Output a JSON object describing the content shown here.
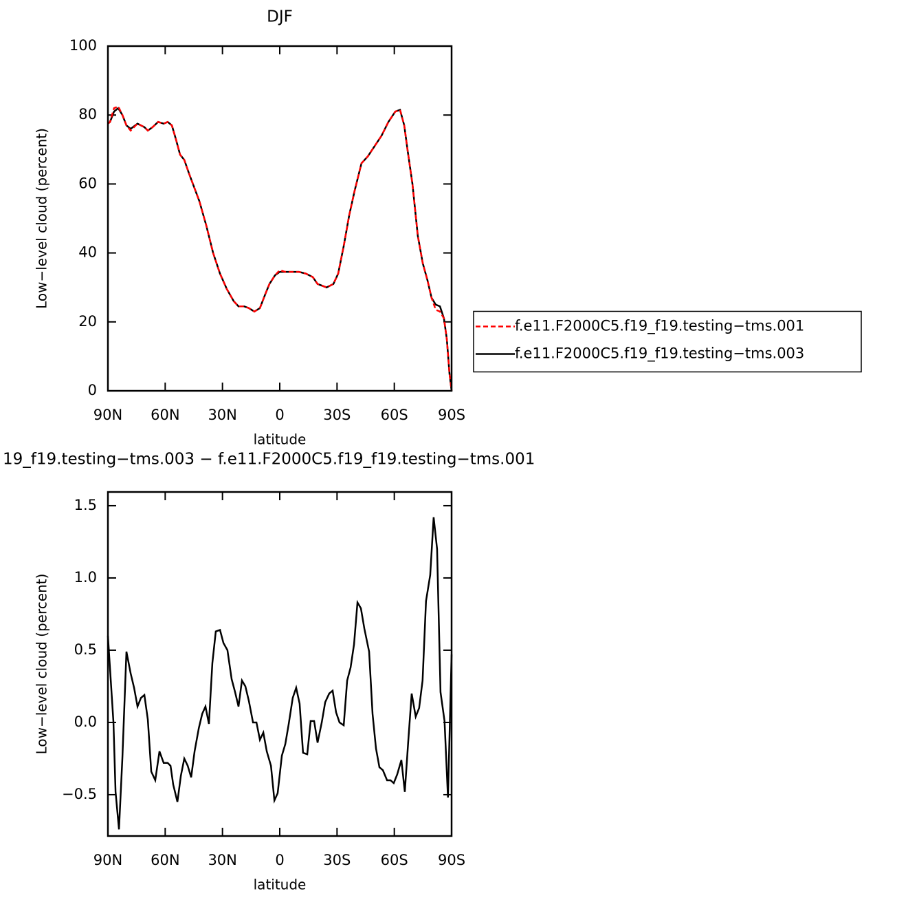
{
  "chart_data": [
    {
      "type": "line",
      "title": "DJF",
      "xlabel": "latitude",
      "ylabel": "Low−level cloud (percent)",
      "xlim": [
        90,
        -90
      ],
      "ylim": [
        0,
        100
      ],
      "xticks": [
        {
          "value": 90,
          "label": "90N"
        },
        {
          "value": 60,
          "label": "60N"
        },
        {
          "value": 30,
          "label": "30N"
        },
        0,
        {
          "value": -30,
          "label": "30S"
        },
        {
          "value": -60,
          "label": "60S"
        },
        {
          "value": -90,
          "label": "90S"
        }
      ],
      "yticks": [
        0,
        20,
        40,
        60,
        80,
        100
      ],
      "legend": "right",
      "x": [
        90,
        88.9,
        86.8,
        84.6,
        82.4,
        80.3,
        78.1,
        74.5,
        70.9,
        69.1,
        66.6,
        63.7,
        60.8,
        58.7,
        56.5,
        54.4,
        52.2,
        50,
        47.5,
        42.1,
        38.5,
        34.9,
        31.3,
        27.7,
        24.1,
        21.6,
        18.7,
        16.2,
        13.3,
        10.4,
        7.6,
        5.4,
        2.5,
        0,
        -2.9,
        -6.5,
        -10.1,
        -13.7,
        -17.3,
        -19.8,
        -24.5,
        -28.1,
        -30.6,
        -33.5,
        -36.4,
        -39.2,
        -42.8,
        -46.1,
        -49.7,
        -53.3,
        -56.9,
        -60.5,
        -63,
        -65.2,
        -66.9,
        -69.5,
        -72.3,
        -74.9,
        -77.4,
        -79.5,
        -81.7,
        -83.9,
        -86,
        -87.5,
        -88.9,
        -90
      ],
      "series": [
        {
          "name": "f.e11.F2000C5.f19_f19.testing−tms.001",
          "color": "#ff0000",
          "linestyle": "dashed",
          "values": [
            77.5,
            78,
            82,
            82.5,
            80,
            77,
            75.5,
            77.5,
            76.5,
            75.5,
            76.5,
            78,
            77.5,
            78,
            77,
            73,
            68.5,
            67,
            63,
            55,
            48,
            40,
            34,
            29.5,
            26,
            24.5,
            24.5,
            24,
            23,
            24,
            28,
            31,
            33.5,
            35,
            34.5,
            34.5,
            34.5,
            34,
            33,
            31,
            30,
            31,
            34,
            42,
            51,
            58,
            66,
            68,
            71,
            74,
            78,
            81,
            81.5,
            77,
            70,
            60,
            45,
            37,
            32,
            27,
            23.5,
            23,
            21,
            15,
            5,
            0
          ]
        },
        {
          "name": "f.e11.F2000C5.f19_f19.testing−tms.003",
          "color": "#000000",
          "linestyle": "solid",
          "values": [
            77.5,
            78,
            81,
            82,
            80,
            77,
            76,
            77.5,
            76.5,
            75.5,
            76.5,
            78,
            77.5,
            78,
            77,
            73,
            68.5,
            67,
            63,
            55,
            48,
            40,
            34,
            29.5,
            26,
            24.5,
            24.5,
            24,
            23,
            24,
            28,
            31,
            33.5,
            34.5,
            34.5,
            34.5,
            34.5,
            34,
            33,
            31,
            30,
            31,
            34,
            42,
            51,
            58,
            66,
            68,
            71,
            74,
            78,
            81,
            81.5,
            77,
            70,
            60,
            45,
            37,
            32,
            27,
            25,
            24.5,
            21,
            15,
            5,
            0
          ]
        }
      ]
    },
    {
      "type": "line",
      "title": "19_f19.testing−tms.003 − f.e11.F2000C5.f19_f19.testing−tms.001",
      "xlabel": "latitude",
      "ylabel": "Low−level cloud (percent)",
      "xlim": [
        90,
        -90
      ],
      "ylim": [
        -0.786,
        1.595
      ],
      "xticks": [
        {
          "value": 90,
          "label": "90N"
        },
        {
          "value": 60,
          "label": "60N"
        },
        {
          "value": 30,
          "label": "30N"
        },
        0,
        {
          "value": -30,
          "label": "30S"
        },
        {
          "value": -60,
          "label": "60S"
        },
        {
          "value": -90,
          "label": "90S"
        }
      ],
      "yticks": [
        {
          "value": -0.5,
          "label": "−0.5"
        },
        {
          "value": 0,
          "label": "0.0"
        },
        0.5,
        {
          "value": 1,
          "label": "1.0"
        },
        1.5
      ],
      "x": [
        90,
        87.1,
        86,
        84.2,
        82.4,
        80.3,
        78.1,
        76.3,
        74.5,
        72.7,
        70.9,
        69.1,
        67.3,
        65.2,
        63,
        60.8,
        58.7,
        57.2,
        55.8,
        53.6,
        51.8,
        50,
        48.2,
        46.4,
        44.6,
        42.4,
        40.6,
        38.9,
        37.1,
        35.3,
        33.5,
        31.3,
        29.5,
        27.4,
        25.2,
        23.4,
        21.6,
        19.8,
        18,
        16.2,
        14,
        12.2,
        10.4,
        8.6,
        6.8,
        4.6,
        2.8,
        1.1,
        -1.1,
        -2.9,
        -4.7,
        -6.8,
        -8.6,
        -10.4,
        -12.2,
        -14.4,
        -16.2,
        -18,
        -19.8,
        -22,
        -23.8,
        -25.9,
        -27.7,
        -29.5,
        -31.3,
        -33.5,
        -35.3,
        -37.1,
        -38.9,
        -40.7,
        -42.5,
        -44.3,
        -46.8,
        -48.6,
        -50.4,
        -52.2,
        -54,
        -56.2,
        -58,
        -59.7,
        -61.5,
        -63.7,
        -65.5,
        -67.3,
        -69.1,
        -71.2,
        -73,
        -74.8,
        -76.6,
        -78.8,
        -80.6,
        -82.4,
        -84.2,
        -86.3,
        -88.1,
        -90
      ],
      "series": [
        {
          "color": "#000000",
          "linestyle": "solid",
          "values": [
            0.6,
            0,
            -0.48,
            -0.74,
            -0.24,
            0.49,
            0.34,
            0.24,
            0.11,
            0.17,
            0.19,
            0.02,
            -0.34,
            -0.4,
            -0.2,
            -0.28,
            -0.28,
            -0.3,
            -0.43,
            -0.55,
            -0.37,
            -0.25,
            -0.3,
            -0.38,
            -0.2,
            -0.04,
            0.06,
            0.11,
            -0.01,
            0.41,
            0.63,
            0.64,
            0.55,
            0.5,
            0.3,
            0.21,
            0.11,
            0.29,
            0.25,
            0.15,
            0,
            0,
            -0.12,
            -0.07,
            -0.2,
            -0.3,
            -0.54,
            -0.49,
            -0.23,
            -0.15,
            -0.01,
            0.17,
            0.24,
            0.13,
            -0.21,
            -0.22,
            0.01,
            0.01,
            -0.14,
            0,
            0.14,
            0.2,
            0.22,
            0.07,
            0,
            -0.02,
            0.29,
            0.38,
            0.54,
            0.83,
            0.79,
            0.65,
            0.49,
            0.06,
            -0.18,
            -0.31,
            -0.33,
            -0.4,
            -0.4,
            -0.42,
            -0.36,
            -0.26,
            -0.48,
            -0.13,
            0.2,
            0.04,
            0.1,
            0.29,
            0.84,
            1.02,
            1.42,
            1.2,
            0.21,
            0.01,
            -0.52,
            0.47
          ]
        }
      ]
    }
  ]
}
